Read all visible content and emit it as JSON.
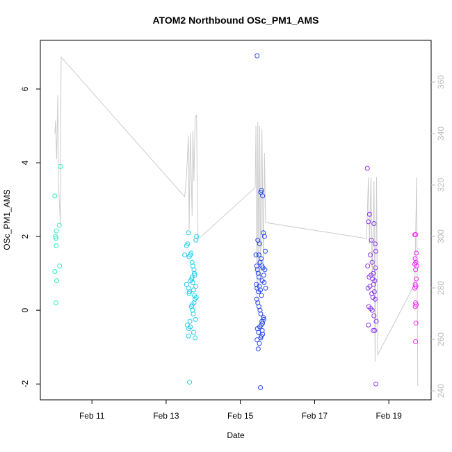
{
  "chart_data": {
    "type": "scatter",
    "title": "ATOM2 Northbound OSc_PM1_AMS",
    "x_label": "Date",
    "y_label": "OSc_PM1_AMS",
    "xlim": [
      9.61,
      20.14
    ],
    "xticks": [
      {
        "value": 11,
        "label": "Feb 11"
      },
      {
        "value": 13,
        "label": "Feb 13"
      },
      {
        "value": 15,
        "label": "Feb 15"
      },
      {
        "value": 17,
        "label": "Feb 17"
      },
      {
        "value": 19,
        "label": "Feb 19"
      }
    ],
    "ylim": [
      -2.43,
      7.32
    ],
    "yticks": [
      -2,
      0,
      2,
      4,
      6
    ],
    "y2lim": [
      236.5,
      376.2
    ],
    "y2ticks": [
      240,
      260,
      280,
      300,
      320,
      340,
      360
    ],
    "series": [
      {
        "color": "#33eebb",
        "x": [
          10.0,
          10.02,
          10.03,
          10.04,
          10.0,
          10.05,
          10.03,
          10.04,
          10.12,
          10.15,
          10.13
        ],
        "values": [
          3.1,
          2.0,
          1.95,
          1.75,
          1.05,
          0.8,
          0.2,
          2.15,
          2.3,
          3.9,
          1.2
        ]
      },
      {
        "color": "#22ccee",
        "x": [
          13.5,
          13.55,
          13.58,
          13.6,
          13.62,
          13.65,
          13.67,
          13.7,
          13.72,
          13.75,
          13.77,
          13.8,
          13.82,
          13.55,
          13.6,
          13.63,
          13.66,
          13.69,
          13.72,
          13.74,
          13.76,
          13.78,
          13.8,
          13.57,
          13.61,
          13.64,
          13.68,
          13.71,
          13.73,
          13.75,
          13.79,
          13.81,
          13.6,
          13.65,
          13.7,
          13.74,
          13.78,
          13.62,
          13.7,
          13.76,
          13.63
        ],
        "values": [
          1.5,
          1.75,
          1.8,
          2.1,
          1.45,
          1.5,
          1.55,
          1.3,
          1.2,
          1.1,
          0.95,
          1.9,
          2.0,
          0.7,
          0.6,
          0.5,
          0.8,
          0.85,
          0.75,
          0.55,
          0.4,
          0.3,
          0.65,
          -0.4,
          -0.5,
          -0.3,
          0.1,
          0.0,
          -0.1,
          0.2,
          -0.25,
          0.35,
          -0.7,
          -0.45,
          0.15,
          -0.6,
          -0.75,
          0.45,
          0.9,
          1.0,
          -1.95
        ]
      },
      {
        "color": "#2244ee",
        "x": [
          15.45,
          15.47,
          15.5,
          15.52,
          15.55,
          15.57,
          15.6,
          15.62,
          15.65,
          15.67,
          15.42,
          15.44,
          15.46,
          15.48,
          15.5,
          15.53,
          15.56,
          15.58,
          15.61,
          15.63,
          15.66,
          15.43,
          15.45,
          15.49,
          15.51,
          15.54,
          15.57,
          15.59,
          15.64,
          15.68,
          15.44,
          15.47,
          15.5,
          15.53,
          15.55,
          15.58,
          15.6,
          15.62,
          15.46,
          15.49,
          15.52,
          15.56,
          15.59,
          15.63,
          15.45,
          15.51,
          15.55,
          15.6,
          15.48,
          15.56,
          15.54
        ],
        "values": [
          6.9,
          1.9,
          1.5,
          1.8,
          3.2,
          3.25,
          3.1,
          2.1,
          2.0,
          1.6,
          1.5,
          1.2,
          1.1,
          1.0,
          0.9,
          1.3,
          1.4,
          1.2,
          1.15,
          0.95,
          1.1,
          0.7,
          0.6,
          0.5,
          0.65,
          0.55,
          0.4,
          0.8,
          0.75,
          0.6,
          0.3,
          0.2,
          0.1,
          0.0,
          -0.1,
          -0.3,
          -0.35,
          -0.2,
          -0.5,
          -0.6,
          -0.45,
          -0.7,
          -0.55,
          -0.25,
          -0.8,
          -0.9,
          -0.75,
          -0.65,
          -1.05,
          -0.4,
          -2.1
        ]
      },
      {
        "color": "#8833ee",
        "x": [
          18.42,
          18.45,
          18.48,
          18.5,
          18.53,
          18.55,
          18.58,
          18.6,
          18.63,
          18.65,
          18.43,
          18.47,
          18.52,
          18.56,
          18.59,
          18.62,
          18.64,
          18.44,
          18.49,
          18.54,
          18.57,
          18.61,
          18.63,
          18.46,
          18.51,
          18.55,
          18.6,
          18.66,
          18.45,
          18.58,
          18.62,
          18.65
        ],
        "values": [
          3.85,
          2.4,
          2.6,
          1.5,
          1.9,
          1.3,
          1.0,
          2.35,
          1.8,
          1.6,
          1.2,
          0.9,
          0.95,
          0.85,
          0.7,
          0.8,
          1.15,
          0.6,
          0.65,
          0.45,
          0.35,
          0.5,
          0.3,
          0.1,
          0.05,
          0.0,
          -0.15,
          -0.3,
          -0.4,
          -0.55,
          -0.55,
          -2.0
        ]
      },
      {
        "color": "#ee22ee",
        "x": [
          19.7,
          19.72,
          19.74,
          19.71,
          19.73,
          19.75,
          19.7,
          19.72,
          19.74,
          19.71,
          19.73,
          19.7,
          19.72,
          19.74,
          19.71,
          19.73,
          19.72
        ],
        "values": [
          2.05,
          2.05,
          1.55,
          1.4,
          1.3,
          1.2,
          1.25,
          1.1,
          0.85,
          0.7,
          0.65,
          0.6,
          0.2,
          0.15,
          0.1,
          -0.35,
          -0.85
        ]
      },
      {
        "color": "#cccccc",
        "axis": "y2",
        "line": true,
        "x": [
          10.0,
          10.02,
          10.05,
          10.08,
          10.1,
          10.15,
          10.17,
          13.5,
          13.55,
          13.6,
          13.62,
          13.65,
          13.7,
          13.72,
          13.75,
          13.78,
          13.82,
          13.85,
          15.4,
          15.42,
          15.45,
          15.47,
          15.5,
          15.52,
          15.55,
          15.58,
          15.62,
          15.65,
          15.68,
          18.4,
          18.45,
          18.48,
          18.52,
          18.55,
          18.6,
          18.63,
          18.67,
          18.7,
          19.7,
          19.75,
          19.78
        ],
        "values": [
          340,
          345,
          330,
          355,
          320,
          305,
          369.7,
          315.4,
          324,
          339,
          302.7,
          340,
          308,
          341,
          321.6,
          346,
          347.3,
          298.7,
          319,
          343,
          273,
          344.6,
          278.4,
          343,
          283.8,
          341.9,
          289,
          332.4,
          305.4,
          299.2,
          323,
          297,
          323,
          283.8,
          321.6,
          251.4,
          323,
          254,
          281.6,
          323,
          241.9
        ]
      }
    ]
  }
}
